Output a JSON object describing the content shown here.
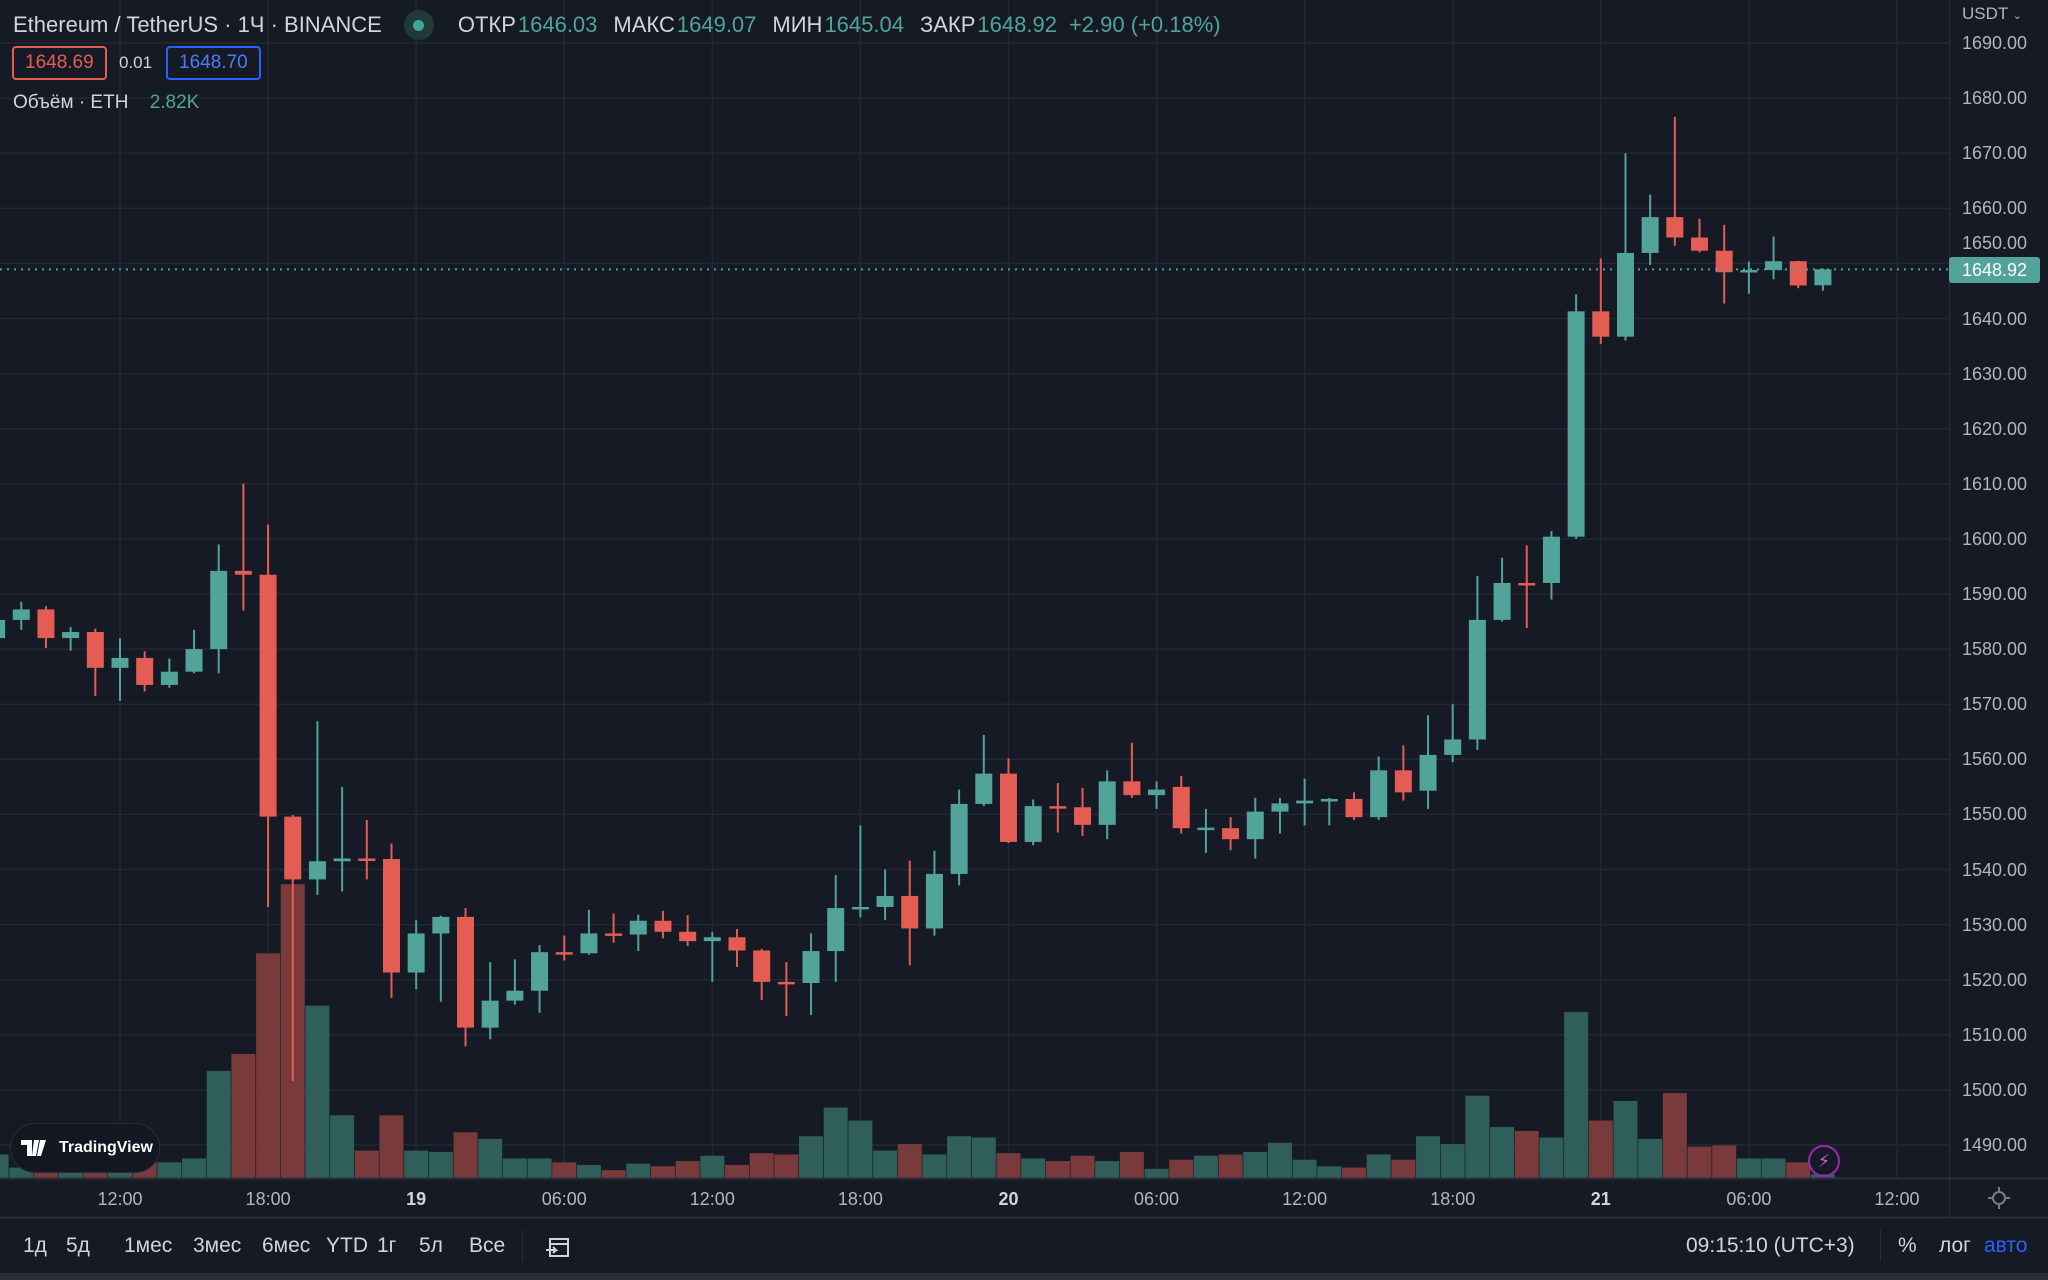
{
  "header": {
    "title": "Ethereum / TetherUS · 1Ч · BINANCE",
    "open_label": "ОТКР",
    "open": "1646.03",
    "high_label": "МАКС",
    "high": "1649.07",
    "low_label": "МИН",
    "low": "1645.04",
    "close_label": "ЗАКР",
    "close": "1648.92",
    "change": "+2.90 (+0.18%)"
  },
  "spread": {
    "bid": "1648.69",
    "spread": "0.01",
    "ask": "1648.70"
  },
  "volume_legend": {
    "label": "Объём · ETH",
    "value": "2.82K"
  },
  "price_axis": {
    "currency": "USDT",
    "ticks": [
      "1690.00",
      "1680.00",
      "1670.00",
      "1660.00",
      "1650.00",
      "1640.00",
      "1630.00",
      "1620.00",
      "1610.00",
      "1600.00",
      "1590.00",
      "1580.00",
      "1570.00",
      "1560.00",
      "1550.00",
      "1540.00",
      "1530.00",
      "1520.00",
      "1510.00",
      "1500.00",
      "1490.00"
    ],
    "last_price": "1648.92"
  },
  "time_axis": [
    {
      "label": "12:00",
      "bold": false
    },
    {
      "label": "18:00",
      "bold": false
    },
    {
      "label": "19",
      "bold": true
    },
    {
      "label": "06:00",
      "bold": false
    },
    {
      "label": "12:00",
      "bold": false
    },
    {
      "label": "18:00",
      "bold": false
    },
    {
      "label": "20",
      "bold": true
    },
    {
      "label": "06:00",
      "bold": false
    },
    {
      "label": "12:00",
      "bold": false
    },
    {
      "label": "18:00",
      "bold": false
    },
    {
      "label": "21",
      "bold": true
    },
    {
      "label": "06:00",
      "bold": false
    },
    {
      "label": "12:00",
      "bold": false
    }
  ],
  "logo": "TradingView",
  "toolbar": {
    "ranges": [
      "1д",
      "5д",
      "1мес",
      "3мес",
      "6мес",
      "YTD",
      "1г",
      "5л",
      "Все"
    ],
    "clock": "09:15:10 (UTC+3)",
    "percent": "%",
    "log": "лог",
    "auto": "авто"
  },
  "colors": {
    "up": "#52a49a",
    "down": "#e35d55",
    "vol_up": "#2f5e5b",
    "vol_down": "#793a3b",
    "bg": "#161a25",
    "grid": "#232734",
    "accent_blue": "#2962ff"
  },
  "chart_data": {
    "type": "candlestick",
    "symbol": "ETHUSDT",
    "interval": "1h",
    "ylim": [
      1487,
      1692
    ],
    "columns": [
      "open",
      "high",
      "low",
      "close",
      "volume_k"
    ],
    "candles": [
      [
        1582,
        1586,
        1581.5,
        1585.3,
        18
      ],
      [
        1585.3,
        1588.6,
        1583.5,
        1587.2,
        8
      ],
      [
        1587.2,
        1587.8,
        1580.2,
        1582,
        8
      ],
      [
        1582,
        1584,
        1579.7,
        1583.1,
        6
      ],
      [
        1583.1,
        1583.7,
        1571.5,
        1576.6,
        8
      ],
      [
        1576.6,
        1582,
        1570.6,
        1578.4,
        10
      ],
      [
        1578.4,
        1579.6,
        1572.3,
        1573.5,
        12
      ],
      [
        1573.5,
        1578.3,
        1573,
        1575.9,
        12
      ],
      [
        1575.9,
        1583.5,
        1575.6,
        1580,
        15
      ],
      [
        1580,
        1599,
        1575.6,
        1594.2,
        82
      ],
      [
        1594.2,
        1610,
        1587,
        1593.5,
        95
      ],
      [
        1593.5,
        1602.6,
        1533.2,
        1549.6,
        172
      ],
      [
        1549.6,
        1549.9,
        1501.6,
        1538.2,
        225
      ],
      [
        1538.2,
        1566.9,
        1535.4,
        1541.5,
        132
      ],
      [
        1541.5,
        1555,
        1536,
        1542,
        48
      ],
      [
        1542,
        1549,
        1538.2,
        1541.9,
        21
      ],
      [
        1541.9,
        1544.7,
        1516.7,
        1521.3,
        48
      ],
      [
        1521.3,
        1530.8,
        1518.3,
        1528.4,
        21
      ],
      [
        1528.4,
        1531.6,
        1516,
        1531.4,
        20
      ],
      [
        1531.4,
        1533,
        1507.9,
        1511.3,
        35
      ],
      [
        1511.3,
        1523.2,
        1509.2,
        1516.2,
        30
      ],
      [
        1516.2,
        1523.7,
        1515.5,
        1518,
        15
      ],
      [
        1518,
        1526.3,
        1514,
        1525,
        15
      ],
      [
        1525,
        1528,
        1523.5,
        1524.8,
        12
      ],
      [
        1524.8,
        1532.7,
        1524.5,
        1528.4,
        10
      ],
      [
        1528.4,
        1532,
        1526.7,
        1528.2,
        6
      ],
      [
        1528.2,
        1531.8,
        1525.2,
        1530.7,
        11
      ],
      [
        1530.7,
        1532.5,
        1527.5,
        1528.7,
        9
      ],
      [
        1528.7,
        1531.7,
        1526.1,
        1527,
        13
      ],
      [
        1527,
        1528.7,
        1519.6,
        1527.7,
        17
      ],
      [
        1527.7,
        1529.2,
        1522.3,
        1525.3,
        10
      ],
      [
        1525.3,
        1525.6,
        1516.3,
        1519.6,
        19
      ],
      [
        1519.6,
        1523.2,
        1513.4,
        1519.4,
        18
      ],
      [
        1519.4,
        1528.4,
        1513.6,
        1525.2,
        32
      ],
      [
        1525.2,
        1539,
        1519.6,
        1533,
        54
      ],
      [
        1533,
        1548,
        1531.3,
        1533.2,
        44
      ],
      [
        1533.2,
        1540,
        1530.8,
        1535.2,
        21
      ],
      [
        1535.2,
        1541.6,
        1522.6,
        1529.3,
        26
      ],
      [
        1529.3,
        1543.4,
        1528,
        1539.2,
        18
      ],
      [
        1539.2,
        1554.5,
        1537.1,
        1551.9,
        32
      ],
      [
        1551.9,
        1564.4,
        1551.5,
        1557.4,
        31
      ],
      [
        1557.4,
        1560.2,
        1544.8,
        1545,
        19
      ],
      [
        1545,
        1552.7,
        1544.4,
        1551.5,
        15
      ],
      [
        1551.5,
        1555.7,
        1546.7,
        1551.3,
        13
      ],
      [
        1551.3,
        1554.8,
        1546.1,
        1548.1,
        17
      ],
      [
        1548.1,
        1558,
        1545.5,
        1556,
        13
      ],
      [
        1556,
        1563,
        1553,
        1553.5,
        20
      ],
      [
        1553.5,
        1556,
        1551,
        1554.5,
        7
      ],
      [
        1555,
        1557,
        1546.5,
        1547.5,
        14
      ],
      [
        1547.3,
        1551,
        1543,
        1547.6,
        17
      ],
      [
        1547.5,
        1549.5,
        1543.5,
        1545.5,
        18
      ],
      [
        1545.5,
        1553,
        1542,
        1550.5,
        20
      ],
      [
        1550.5,
        1553,
        1546.5,
        1552,
        27
      ],
      [
        1552,
        1556.5,
        1548,
        1552.5,
        14
      ],
      [
        1552.5,
        1553,
        1548,
        1552.8,
        9
      ],
      [
        1552.8,
        1554,
        1549,
        1549.5,
        8
      ],
      [
        1549.5,
        1560.5,
        1549,
        1558,
        18
      ],
      [
        1558,
        1562.5,
        1552.5,
        1554,
        14
      ],
      [
        1554.3,
        1568,
        1551,
        1560.8,
        32
      ],
      [
        1560.8,
        1570,
        1559.5,
        1563.6,
        26
      ],
      [
        1563.6,
        1593.3,
        1561.7,
        1585.3,
        63
      ],
      [
        1585.3,
        1596.6,
        1585,
        1592,
        39
      ],
      [
        1592,
        1598.8,
        1583.8,
        1591.8,
        36
      ],
      [
        1592,
        1601.4,
        1589,
        1600.4,
        31
      ],
      [
        1600.4,
        1644.4,
        1600,
        1641.3,
        127
      ],
      [
        1641.3,
        1650.9,
        1635.4,
        1636.7,
        44
      ],
      [
        1636.7,
        1670,
        1636,
        1651.9,
        59
      ],
      [
        1651.9,
        1662.5,
        1649.7,
        1658.4,
        30
      ],
      [
        1658.4,
        1676.6,
        1653.2,
        1654.7,
        65
      ],
      [
        1654.7,
        1658.1,
        1652,
        1652.3,
        24
      ],
      [
        1652.3,
        1657,
        1642.7,
        1648.4,
        25
      ],
      [
        1648.4,
        1650.3,
        1644.5,
        1648.8,
        15
      ],
      [
        1648.8,
        1654.9,
        1647.1,
        1650.4,
        15
      ],
      [
        1650.4,
        1650.5,
        1645.5,
        1646,
        12
      ],
      [
        1646.03,
        1649.07,
        1645.04,
        1648.92,
        2.82
      ]
    ]
  }
}
